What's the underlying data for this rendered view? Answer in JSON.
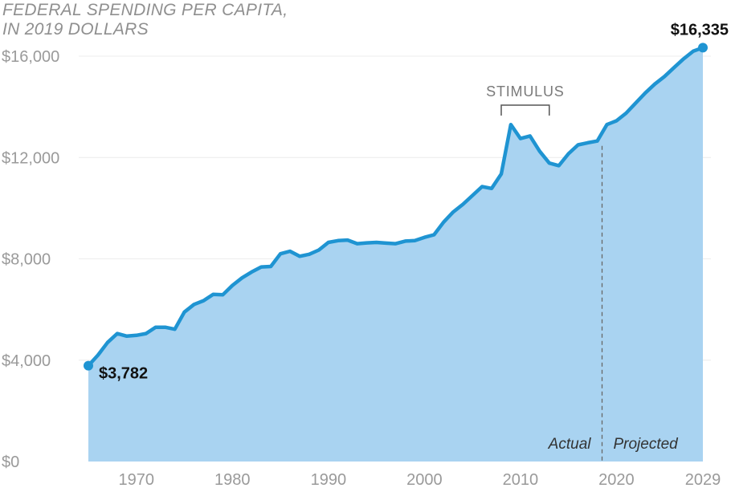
{
  "chart_data": {
    "type": "area",
    "title_lines": [
      "FEDERAL SPENDING PER CAPITA,",
      "IN 2019 DOLLARS"
    ],
    "xlabel": "",
    "ylabel": "",
    "xlim": [
      1965,
      2029
    ],
    "ylim": [
      0,
      16000
    ],
    "x_ticks": [
      1970,
      1980,
      1990,
      2000,
      2010,
      2020,
      2029
    ],
    "y_ticks": [
      {
        "value": 0,
        "label": "$0"
      },
      {
        "value": 4000,
        "label": "$4,000"
      },
      {
        "value": 8000,
        "label": "$8,000"
      },
      {
        "value": 12000,
        "label": "$12,000"
      },
      {
        "value": 16000,
        "label": "$16,000"
      }
    ],
    "grid": true,
    "series": [
      {
        "color": "#1f94d2",
        "fill": "#a9d3f1",
        "x": [
          1965,
          1966,
          1967,
          1968,
          1969,
          1970,
          1971,
          1972,
          1973,
          1974,
          1975,
          1976,
          1977,
          1978,
          1979,
          1980,
          1981,
          1982,
          1983,
          1984,
          1985,
          1986,
          1987,
          1988,
          1989,
          1990,
          1991,
          1992,
          1993,
          1994,
          1995,
          1996,
          1997,
          1998,
          1999,
          2000,
          2001,
          2002,
          2003,
          2004,
          2005,
          2006,
          2007,
          2008,
          2009,
          2010,
          2011,
          2012,
          2013,
          2014,
          2015,
          2016,
          2017,
          2018,
          2019,
          2020,
          2021,
          2022,
          2023,
          2024,
          2025,
          2026,
          2027,
          2028,
          2029
        ],
        "y": [
          3782,
          4200,
          4700,
          5050,
          4950,
          4980,
          5050,
          5300,
          5300,
          5220,
          5900,
          6200,
          6350,
          6600,
          6580,
          6950,
          7250,
          7480,
          7680,
          7700,
          8200,
          8300,
          8100,
          8180,
          8350,
          8650,
          8720,
          8740,
          8600,
          8630,
          8650,
          8620,
          8600,
          8700,
          8720,
          8850,
          8950,
          9450,
          9850,
          10150,
          10500,
          10850,
          10780,
          11350,
          13300,
          12750,
          12850,
          12250,
          11780,
          11680,
          12150,
          12500,
          12580,
          12650,
          13300,
          13450,
          13750,
          14150,
          14550,
          14900,
          15200,
          15550,
          15900,
          16200,
          16335
        ]
      }
    ],
    "annotations": [
      {
        "text": "$3,782",
        "x": 1965,
        "y": 3782
      },
      {
        "text": "$16,335",
        "x": 2029,
        "y": 16335
      },
      {
        "text": "STIMULUS",
        "x_start": 2008,
        "x_end": 2013
      },
      {
        "text": "Actual",
        "x": 2018.5
      },
      {
        "text": "Projected",
        "x": 2018.5
      }
    ]
  }
}
